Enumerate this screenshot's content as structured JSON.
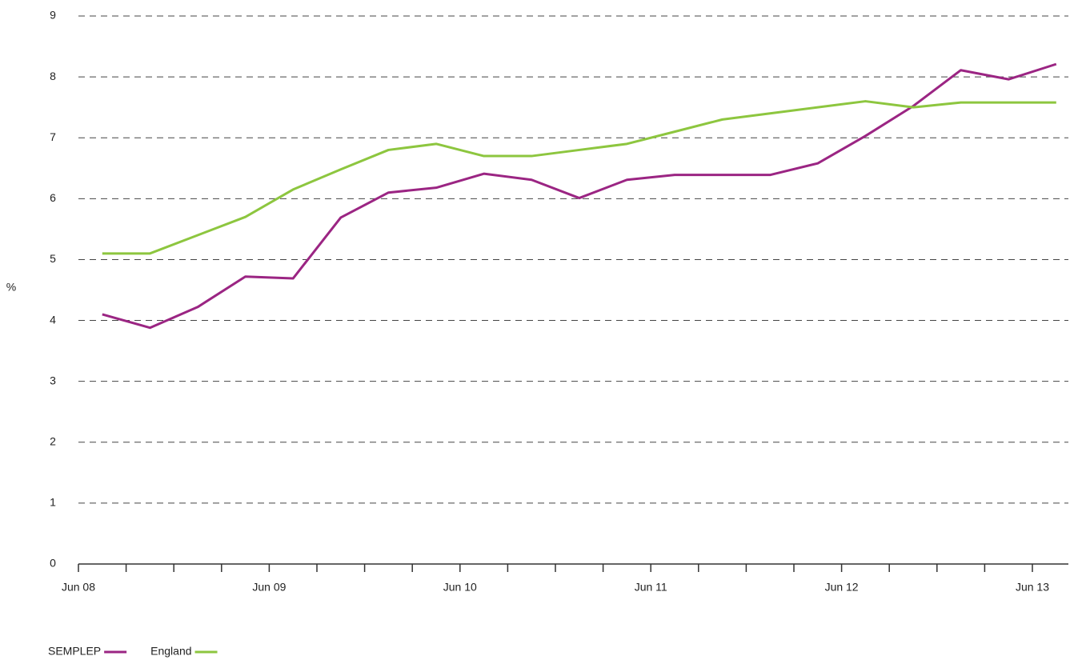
{
  "chart_data": {
    "type": "line",
    "y_label": "%",
    "categories": [
      "Jun 08",
      null,
      null,
      null,
      "Jun 09",
      null,
      null,
      null,
      "Jun 10",
      null,
      null,
      null,
      "Jun 11",
      null,
      null,
      null,
      "Jun 12",
      null,
      null,
      null,
      "Jun 13"
    ],
    "series": [
      {
        "name": "SEMPLEP",
        "color": "#9b2583",
        "values": [
          4.1,
          3.88,
          4.22,
          4.72,
          4.69,
          5.69,
          6.1,
          6.18,
          6.41,
          6.31,
          6.01,
          6.31,
          6.39,
          6.39,
          6.39,
          6.58,
          7.03,
          7.52,
          8.11,
          7.96,
          8.21
        ]
      },
      {
        "name": "England",
        "color": "#8dc63f",
        "values": [
          5.1,
          5.1,
          5.4,
          5.7,
          6.15,
          6.48,
          6.8,
          6.9,
          6.7,
          6.7,
          6.8,
          6.9,
          7.1,
          7.3,
          7.4,
          7.5,
          7.6,
          7.5,
          7.58,
          7.58,
          7.58
        ]
      }
    ],
    "ylim": [
      0,
      9
    ],
    "yticks": [
      0,
      1,
      2,
      3,
      4,
      5,
      6,
      7,
      8,
      9
    ],
    "grid": true,
    "legend": "bottom-left"
  }
}
